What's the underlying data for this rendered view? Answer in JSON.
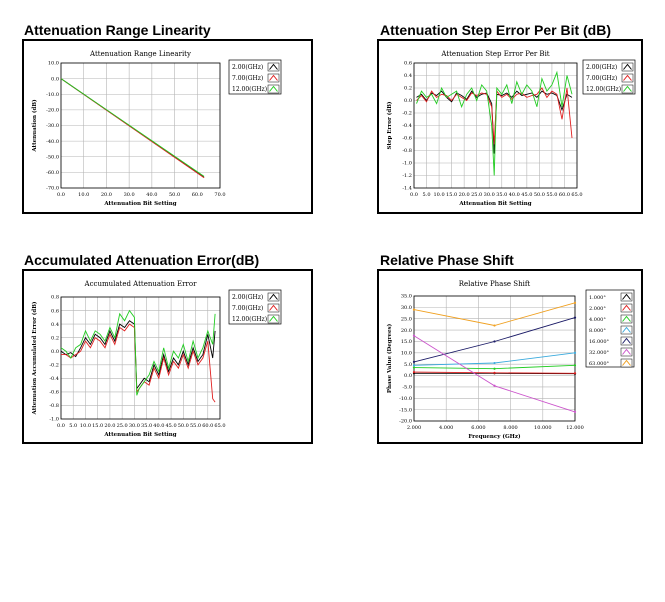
{
  "panels": [
    {
      "title": "Attenuation Range Linearity"
    },
    {
      "title": "Attenuation Step Error Per Bit (dB)"
    },
    {
      "title": "Accumulated Attenuation Error(dB)"
    },
    {
      "title": "Relative Phase Shift"
    }
  ],
  "chart_data": [
    {
      "type": "line",
      "title": "Attenuation Range Linearity",
      "xlabel": "Attenuation Bit Setting",
      "ylabel": "Attenuation (dB)",
      "xlim": [
        0,
        70
      ],
      "ylim": [
        -70,
        10
      ],
      "xticks": [
        "0.0",
        "10.0",
        "20.0",
        "30.0",
        "40.0",
        "50.0",
        "60.0",
        "70.0"
      ],
      "yticks": [
        "10.0",
        "0.0",
        "-10.0",
        "-20.0",
        "-30.0",
        "-40.0",
        "-50.0",
        "-60.0",
        "-70.0"
      ],
      "legend_position": "top-right",
      "series": [
        {
          "name": "2.00(GHz)",
          "color": "#000000",
          "x": [
            0,
            63
          ],
          "y": [
            0,
            -63.2
          ]
        },
        {
          "name": "7.00(GHz)",
          "color": "#e02020",
          "x": [
            0,
            63
          ],
          "y": [
            0,
            -63.5
          ]
        },
        {
          "name": "12.00(GHz)",
          "color": "#22cc22",
          "x": [
            0,
            63
          ],
          "y": [
            0,
            -62.6
          ]
        }
      ]
    },
    {
      "type": "line",
      "title": "Attenuation Step Error Per Bit",
      "xlabel": "Attenuation Bit Setting",
      "ylabel": "Step Error (dB)",
      "xlim": [
        0,
        65
      ],
      "ylim": [
        -1.4,
        0.6
      ],
      "xticks": [
        "0.0",
        "5.0",
        "10.0",
        "15.0",
        "20.0",
        "25.0",
        "30.0",
        "35.0",
        "40.0",
        "45.0",
        "50.0",
        "55.0",
        "60.0",
        "65.0"
      ],
      "yticks": [
        "0.6",
        "0.4",
        "0.2",
        "0.0",
        "-0.2",
        "-0.4",
        "-0.6",
        "-0.8",
        "-1.0",
        "-1.2",
        "-1.4"
      ],
      "legend_position": "top-right",
      "series": [
        {
          "name": "2.00(GHz)",
          "color": "#000000",
          "x": [
            1,
            3,
            5,
            7,
            9,
            11,
            13,
            15,
            17,
            19,
            21,
            23,
            25,
            27,
            29,
            31,
            32,
            33,
            35,
            37,
            39,
            41,
            43,
            45,
            47,
            49,
            51,
            53,
            55,
            57,
            59,
            61,
            63
          ],
          "y": [
            0.05,
            0.1,
            0.0,
            0.12,
            0.08,
            0.15,
            0.05,
            -0.02,
            0.12,
            0.08,
            0.02,
            0.15,
            0.05,
            0.1,
            0.12,
            -0.05,
            -0.85,
            0.1,
            0.08,
            0.12,
            0.05,
            0.15,
            0.08,
            0.1,
            0.12,
            0.05,
            0.15,
            0.1,
            0.12,
            0.08,
            -0.15,
            0.1,
            0.05
          ]
        },
        {
          "name": "7.00(GHz)",
          "color": "#e02020",
          "x": [
            1,
            3,
            5,
            7,
            9,
            11,
            13,
            15,
            17,
            19,
            21,
            23,
            25,
            27,
            29,
            31,
            32,
            33,
            35,
            37,
            39,
            41,
            43,
            45,
            47,
            49,
            51,
            53,
            55,
            57,
            59,
            61,
            63
          ],
          "y": [
            0.0,
            0.08,
            -0.02,
            0.15,
            0.05,
            0.1,
            0.08,
            0.0,
            0.1,
            0.05,
            0.0,
            0.12,
            0.08,
            0.12,
            0.1,
            -0.1,
            -0.7,
            0.15,
            0.05,
            0.1,
            0.02,
            0.1,
            0.12,
            0.05,
            0.08,
            0.1,
            0.2,
            0.05,
            0.15,
            0.1,
            -0.3,
            0.2,
            -0.6
          ]
        },
        {
          "name": "12.00(GHz)",
          "color": "#22cc22",
          "x": [
            1,
            3,
            5,
            7,
            9,
            11,
            13,
            15,
            17,
            19,
            21,
            23,
            25,
            27,
            29,
            31,
            32,
            33,
            35,
            37,
            39,
            41,
            43,
            45,
            47,
            49,
            51,
            53,
            55,
            57,
            59,
            61,
            63
          ],
          "y": [
            -0.05,
            0.15,
            0.05,
            0.1,
            -0.05,
            0.2,
            0.05,
            0.1,
            0.15,
            -0.1,
            0.1,
            0.2,
            0.0,
            0.25,
            0.15,
            -0.4,
            -1.2,
            0.2,
            0.1,
            0.25,
            -0.05,
            0.3,
            0.1,
            0.25,
            0.15,
            -0.1,
            0.35,
            0.15,
            0.25,
            0.45,
            -0.1,
            0.4,
            0.1
          ]
        }
      ]
    },
    {
      "type": "line",
      "title": "Accumulated Attenuation Error",
      "xlabel": "Attenuation Bit Setting",
      "ylabel": "Attenuation Accumulated Error (dB)",
      "xlim": [
        0,
        65
      ],
      "ylim": [
        -1.0,
        0.8
      ],
      "xticks": [
        "0.0",
        "5.0",
        "10.0",
        "15.0",
        "20.0",
        "25.0",
        "30.0",
        "35.0",
        "40.0",
        "45.0",
        "50.0",
        "55.0",
        "60.0",
        "65.0"
      ],
      "yticks": [
        "0.8",
        "0.6",
        "0.4",
        "0.2",
        "0.0",
        "-0.2",
        "-0.4",
        "-0.6",
        "-0.8",
        "-1.0"
      ],
      "legend_position": "top-right",
      "series": [
        {
          "name": "2.00(GHz)",
          "color": "#000000",
          "x": [
            0,
            2,
            4,
            6,
            8,
            10,
            12,
            14,
            16,
            18,
            20,
            22,
            24,
            26,
            28,
            30,
            31,
            32,
            34,
            36,
            38,
            40,
            42,
            44,
            46,
            48,
            50,
            52,
            54,
            56,
            58,
            60,
            62,
            63
          ],
          "y": [
            0.0,
            -0.05,
            -0.02,
            -0.08,
            0.05,
            0.2,
            0.1,
            0.25,
            0.2,
            0.1,
            0.3,
            0.15,
            0.4,
            0.35,
            0.45,
            0.4,
            -0.55,
            -0.5,
            -0.4,
            -0.45,
            -0.2,
            -0.35,
            -0.05,
            -0.3,
            -0.1,
            -0.2,
            0.0,
            -0.2,
            0.05,
            -0.15,
            -0.05,
            0.25,
            -0.1,
            0.3
          ]
        },
        {
          "name": "7.00(GHz)",
          "color": "#e02020",
          "x": [
            0,
            2,
            4,
            6,
            8,
            10,
            12,
            14,
            16,
            18,
            20,
            22,
            24,
            26,
            28,
            30,
            31,
            32,
            34,
            36,
            38,
            40,
            42,
            44,
            46,
            48,
            50,
            52,
            54,
            56,
            58,
            60,
            62,
            63
          ],
          "y": [
            -0.05,
            -0.05,
            -0.1,
            -0.05,
            0.0,
            0.15,
            0.05,
            0.2,
            0.15,
            0.05,
            0.25,
            0.1,
            0.35,
            0.3,
            0.4,
            0.35,
            -0.6,
            -0.55,
            -0.45,
            -0.5,
            -0.25,
            -0.4,
            -0.1,
            -0.35,
            -0.15,
            -0.25,
            -0.05,
            -0.25,
            0.0,
            -0.2,
            -0.1,
            0.15,
            -0.7,
            -0.75
          ]
        },
        {
          "name": "12.00(GHz)",
          "color": "#22cc22",
          "x": [
            0,
            2,
            4,
            6,
            8,
            10,
            12,
            14,
            16,
            18,
            20,
            22,
            24,
            26,
            28,
            30,
            31,
            32,
            34,
            36,
            38,
            40,
            42,
            44,
            46,
            48,
            50,
            52,
            54,
            56,
            58,
            60,
            62,
            63
          ],
          "y": [
            0.05,
            0.0,
            -0.1,
            0.05,
            0.1,
            0.3,
            0.15,
            0.3,
            0.25,
            0.15,
            0.35,
            0.2,
            0.55,
            0.45,
            0.6,
            0.5,
            -0.65,
            -0.55,
            -0.45,
            -0.35,
            -0.15,
            -0.3,
            0.05,
            -0.25,
            0.0,
            -0.1,
            0.1,
            -0.15,
            0.15,
            -0.1,
            0.05,
            0.3,
            0.1,
            0.55
          ]
        }
      ]
    },
    {
      "type": "line",
      "title": "Relative Phase Shift",
      "xlabel": "Frequency (GHz)",
      "ylabel": "Phase Value (Degrees)",
      "xlim": [
        2,
        12
      ],
      "ylim": [
        -20,
        35
      ],
      "xticks": [
        "2.000",
        "4.000",
        "6.000",
        "8.000",
        "10.000",
        "12.000"
      ],
      "yticks": [
        "35.0",
        "30.0",
        "25.0",
        "20.0",
        "15.0",
        "10.0",
        "5.0",
        "0.0",
        "-5.0",
        "-10.0",
        "-15.0",
        "-20.0"
      ],
      "legend_position": "top-right",
      "series": [
        {
          "name": "1.000°",
          "color": "#000000",
          "x": [
            2,
            7,
            12
          ],
          "y": [
            1.0,
            1.0,
            0.8
          ]
        },
        {
          "name": "2.000°",
          "color": "#e02020",
          "x": [
            2,
            7,
            12
          ],
          "y": [
            1.5,
            1.2,
            1.0
          ]
        },
        {
          "name": "4.000°",
          "color": "#22cc22",
          "x": [
            2,
            7,
            12
          ],
          "y": [
            3.5,
            3.0,
            4.5
          ]
        },
        {
          "name": "8.000°",
          "color": "#3aaadd",
          "x": [
            2,
            7,
            12
          ],
          "y": [
            4.5,
            5.5,
            10.0
          ]
        },
        {
          "name": "16.000°",
          "color": "#1a1a66",
          "x": [
            2,
            7,
            12
          ],
          "y": [
            6.0,
            15.0,
            25.5
          ]
        },
        {
          "name": "32.000°",
          "color": "#cc55cc",
          "x": [
            2,
            7,
            12
          ],
          "y": [
            17.5,
            -4.5,
            -16.0
          ]
        },
        {
          "name": "63.000°",
          "color": "#f0a020",
          "x": [
            2,
            7,
            12
          ],
          "y": [
            29.0,
            22.0,
            32.0
          ]
        }
      ]
    }
  ]
}
